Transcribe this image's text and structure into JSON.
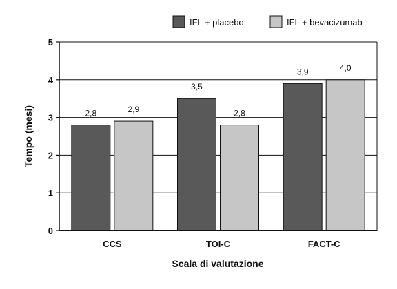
{
  "chart_data": {
    "type": "bar",
    "categories": [
      "CCS",
      "TOI-C",
      "FACT-C"
    ],
    "series": [
      {
        "name": "IFL + placebo",
        "values": [
          2.8,
          3.5,
          3.9
        ],
        "labels": [
          "2,8",
          "3,5",
          "3,9"
        ],
        "color": "#595959"
      },
      {
        "name": "IFL + bevacizumab",
        "values": [
          2.9,
          2.8,
          4.0
        ],
        "labels": [
          "2,9",
          "2,8",
          "4,0"
        ],
        "color": "#c6c6c6"
      }
    ],
    "xlabel": "Scala di valutazione",
    "ylabel": "Tempo (mesi)",
    "ylim": [
      0,
      5
    ],
    "yticks": [
      "0",
      "1",
      "2",
      "3",
      "4",
      "5"
    ],
    "grid": true,
    "legend_position": "top-right"
  }
}
